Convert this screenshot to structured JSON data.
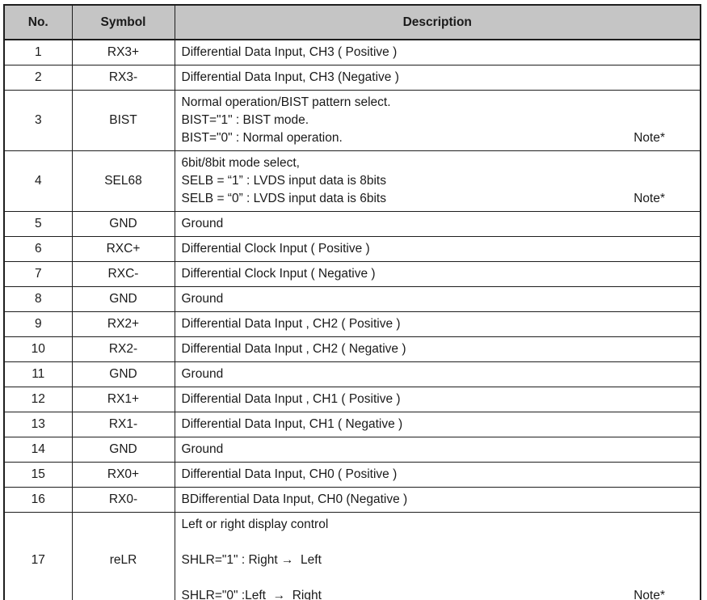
{
  "table": {
    "colors": {
      "header_bg": "#c5c5c5",
      "border": "#1e1e1e",
      "text": "#1a1a1a"
    },
    "columns": [
      {
        "label": "No."
      },
      {
        "label": "Symbol"
      },
      {
        "label": "Description"
      }
    ],
    "rows": [
      {
        "no": "1",
        "symbol": "RX3+",
        "description": [
          {
            "text": "Differential Data Input, CH3 ( Positive )"
          }
        ]
      },
      {
        "no": "2",
        "symbol": "RX3-",
        "description": [
          {
            "text": "Differential Data Input, CH3 (Negative )"
          }
        ]
      },
      {
        "no": "3",
        "symbol": "BIST",
        "description": [
          {
            "text": "Normal operation/BIST pattern select."
          },
          {
            "text": "BIST=\"1\" : BIST mode."
          },
          {
            "text": "BIST=\"0\" : Normal operation.",
            "note": "Note*"
          }
        ]
      },
      {
        "no": "4",
        "symbol": "SEL68",
        "description": [
          {
            "text": "6bit/8bit mode select,"
          },
          {
            "text": "SELB = “1” : LVDS input data is 8bits"
          },
          {
            "text": "SELB = “0” : LVDS input data is 6bits",
            "note": "Note*"
          }
        ]
      },
      {
        "no": "5",
        "symbol": "GND",
        "description": [
          {
            "text": "Ground"
          }
        ]
      },
      {
        "no": "6",
        "symbol": "RXC+",
        "description": [
          {
            "text": "Differential Clock Input ( Positive )"
          }
        ]
      },
      {
        "no": "7",
        "symbol": "RXC-",
        "description": [
          {
            "text": "Differential Clock Input ( Negative )"
          }
        ]
      },
      {
        "no": "8",
        "symbol": "GND",
        "description": [
          {
            "text": "Ground"
          }
        ]
      },
      {
        "no": "9",
        "symbol": "RX2+",
        "description": [
          {
            "text": "Differential Data Input , CH2 ( Positive )"
          }
        ]
      },
      {
        "no": "10",
        "symbol": "RX2-",
        "description": [
          {
            "text": "Differential Data Input , CH2 ( Negative )"
          }
        ]
      },
      {
        "no": "11",
        "symbol": "GND",
        "description": [
          {
            "text": "Ground"
          }
        ]
      },
      {
        "no": "12",
        "symbol": "RX1+",
        "description": [
          {
            "text": "Differential Data Input , CH1 ( Positive )"
          }
        ]
      },
      {
        "no": "13",
        "symbol": "RX1-",
        "description": [
          {
            "text": "Differential Data Input, CH1 ( Negative )"
          }
        ]
      },
      {
        "no": "14",
        "symbol": "GND",
        "description": [
          {
            "text": "Ground"
          }
        ]
      },
      {
        "no": "15",
        "symbol": "RX0+",
        "description": [
          {
            "text": "Differential Data Input, CH0 ( Positive )"
          }
        ]
      },
      {
        "no": "16",
        "symbol": "RX0-",
        "description": [
          {
            "text": "BDifferential Data Input, CH0 (Negative )"
          }
        ]
      },
      {
        "no": "17",
        "symbol": "reLR",
        "description": [
          {
            "text": "Left or right display control"
          },
          {
            "text": ""
          },
          {
            "text": "SHLR=\"1\" : Right →  Left"
          },
          {
            "text": ""
          },
          {
            "text": "SHLR=\"0\" :Left  →  Right",
            "note": "Note*"
          }
        ]
      }
    ]
  }
}
